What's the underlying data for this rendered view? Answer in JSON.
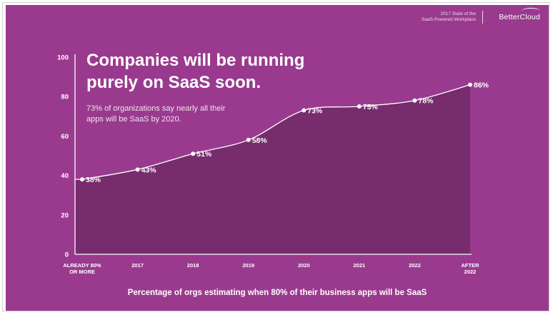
{
  "branding": {
    "report_line1": "2017 State of the",
    "report_line2": "SaaS-Powered Workplace",
    "logo_text": "BetterCloud"
  },
  "headline": {
    "line1": "Companies will be running",
    "line2": "purely on SaaS soon."
  },
  "subheadline": {
    "line1": "73% of organizations say nearly all their",
    "line2": "apps will be SaaS by 2020."
  },
  "colors": {
    "background": "#9a3a8e",
    "area_fill": "#772c6d",
    "line": "#ffffff",
    "text": "#ffffff"
  },
  "chart_data": {
    "type": "area",
    "title": "Companies will be running purely on SaaS soon.",
    "subtitle": "73% of organizations say nearly all their apps will be SaaS by 2020.",
    "caption": "Percentage of orgs estimating when 80% of their business apps will be SaaS",
    "categories": [
      [
        "ALREADY 80%",
        "OR MORE"
      ],
      [
        "2017"
      ],
      [
        "2018"
      ],
      [
        "2019"
      ],
      [
        "2020"
      ],
      [
        "2021"
      ],
      [
        "2022"
      ],
      [
        "AFTER",
        "2022"
      ]
    ],
    "values": [
      38,
      43,
      51,
      58,
      73,
      75,
      78,
      86
    ],
    "data_labels": [
      "38%",
      "43%",
      "51%",
      "58%",
      "73%",
      "75%",
      "78%",
      "86%"
    ],
    "yticks": [
      "0",
      "20",
      "40",
      "60",
      "80",
      "100"
    ],
    "ylim": [
      0,
      100
    ],
    "grid": false,
    "legend": "none"
  }
}
